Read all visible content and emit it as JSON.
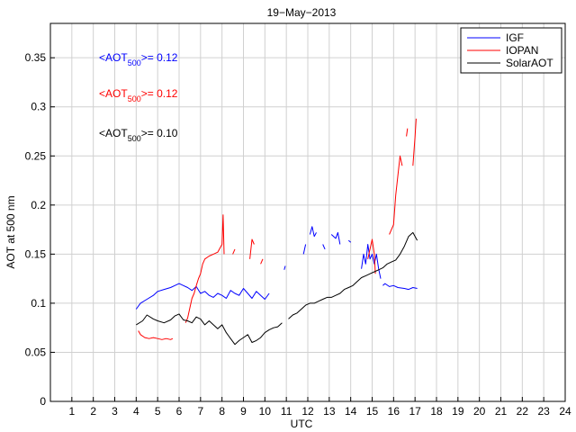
{
  "chart_data": {
    "type": "line",
    "title": "19−May−2013",
    "xlabel": "UTC",
    "ylabel": "AOT at 500 nm",
    "xlim": [
      0,
      24
    ],
    "ylim": [
      0,
      0.385
    ],
    "xticks": [
      1,
      2,
      3,
      4,
      5,
      6,
      7,
      8,
      9,
      10,
      11,
      12,
      13,
      14,
      15,
      16,
      17,
      18,
      19,
      20,
      21,
      22,
      23,
      24
    ],
    "xticklabels": [
      "1",
      "2",
      "3",
      "4",
      "5",
      "6",
      "7",
      "8",
      "9",
      "10",
      "11",
      "12",
      "13",
      "14",
      "15",
      "16",
      "17",
      "18",
      "19",
      "20",
      "21",
      "22",
      "23",
      "24"
    ],
    "yticks": [
      0,
      0.05,
      0.1,
      0.15,
      0.2,
      0.25,
      0.3,
      0.35
    ],
    "yticklabels": [
      "0",
      "0.05",
      "0.1",
      "0.15",
      "0.2",
      "0.25",
      "0.3",
      "0.35"
    ],
    "grid": true,
    "legend_position": "top-right",
    "annotations": [
      {
        "prefix": "<AOT",
        "sub": "500",
        "suffix": ">= 0.12",
        "color": "#0000ff"
      },
      {
        "prefix": "<AOT",
        "sub": "500",
        "suffix": ">= 0.12",
        "color": "#ff0000"
      },
      {
        "prefix": "<AOT",
        "sub": "500",
        "suffix": ">= 0.10",
        "color": "#000000"
      }
    ],
    "series": [
      {
        "name": "IGF",
        "color": "#0000ff",
        "segments": [
          [
            [
              4.0,
              0.094
            ],
            [
              4.2,
              0.1
            ],
            [
              4.5,
              0.104
            ],
            [
              4.8,
              0.108
            ],
            [
              5.0,
              0.112
            ],
            [
              5.3,
              0.114
            ],
            [
              5.6,
              0.116
            ],
            [
              5.8,
              0.118
            ],
            [
              6.0,
              0.12
            ],
            [
              6.2,
              0.118
            ],
            [
              6.4,
              0.116
            ],
            [
              6.6,
              0.113
            ],
            [
              6.8,
              0.117
            ],
            [
              7.0,
              0.11
            ],
            [
              7.2,
              0.112
            ],
            [
              7.4,
              0.108
            ],
            [
              7.6,
              0.106
            ],
            [
              7.8,
              0.11
            ],
            [
              8.0,
              0.108
            ],
            [
              8.2,
              0.105
            ],
            [
              8.4,
              0.113
            ],
            [
              8.6,
              0.11
            ],
            [
              8.8,
              0.108
            ],
            [
              9.0,
              0.115
            ],
            [
              9.2,
              0.11
            ],
            [
              9.4,
              0.105
            ],
            [
              9.6,
              0.112
            ],
            [
              9.8,
              0.108
            ],
            [
              10.0,
              0.104
            ],
            [
              10.2,
              0.11
            ]
          ],
          [
            [
              10.9,
              0.134
            ],
            [
              10.95,
              0.138
            ]
          ],
          [
            [
              11.8,
              0.15
            ],
            [
              11.9,
              0.16
            ]
          ],
          [
            [
              12.1,
              0.17
            ],
            [
              12.2,
              0.178
            ],
            [
              12.3,
              0.168
            ],
            [
              12.4,
              0.172
            ]
          ],
          [
            [
              12.7,
              0.16
            ],
            [
              12.8,
              0.155
            ]
          ],
          [
            [
              13.1,
              0.17
            ],
            [
              13.3,
              0.166
            ],
            [
              13.4,
              0.172
            ],
            [
              13.5,
              0.16
            ]
          ],
          [
            [
              13.9,
              0.164
            ],
            [
              14.0,
              0.162
            ]
          ],
          [
            [
              14.5,
              0.135
            ],
            [
              14.6,
              0.15
            ],
            [
              14.7,
              0.14
            ],
            [
              14.8,
              0.16
            ],
            [
              14.9,
              0.145
            ],
            [
              15.0,
              0.15
            ],
            [
              15.1,
              0.14
            ],
            [
              15.2,
              0.15
            ],
            [
              15.3,
              0.135
            ],
            [
              15.4,
              0.125
            ]
          ],
          [
            [
              15.5,
              0.118
            ],
            [
              15.6,
              0.12
            ],
            [
              15.8,
              0.117
            ],
            [
              16.0,
              0.118
            ],
            [
              16.2,
              0.116
            ],
            [
              16.5,
              0.115
            ],
            [
              16.7,
              0.114
            ],
            [
              16.9,
              0.116
            ],
            [
              17.1,
              0.115
            ]
          ]
        ]
      },
      {
        "name": "IOPAN",
        "color": "#ff0000",
        "segments": [
          [
            [
              4.1,
              0.072
            ],
            [
              4.2,
              0.068
            ],
            [
              4.4,
              0.065
            ],
            [
              4.6,
              0.064
            ],
            [
              4.8,
              0.065
            ],
            [
              5.0,
              0.064
            ],
            [
              5.2,
              0.063
            ],
            [
              5.4,
              0.064
            ],
            [
              5.6,
              0.063
            ],
            [
              5.7,
              0.064
            ]
          ],
          [
            [
              6.3,
              0.08
            ],
            [
              6.4,
              0.085
            ],
            [
              6.5,
              0.095
            ],
            [
              6.6,
              0.105
            ],
            [
              6.7,
              0.11
            ],
            [
              6.8,
              0.118
            ],
            [
              6.9,
              0.125
            ],
            [
              7.0,
              0.13
            ],
            [
              7.1,
              0.14
            ],
            [
              7.2,
              0.145
            ],
            [
              7.4,
              0.148
            ],
            [
              7.6,
              0.15
            ],
            [
              7.8,
              0.152
            ],
            [
              8.0,
              0.16
            ],
            [
              8.05,
              0.19
            ],
            [
              8.1,
              0.15
            ]
          ],
          [
            [
              8.5,
              0.15
            ],
            [
              8.6,
              0.155
            ]
          ],
          [
            [
              9.3,
              0.145
            ],
            [
              9.4,
              0.165
            ],
            [
              9.5,
              0.16
            ]
          ],
          [
            [
              9.8,
              0.14
            ],
            [
              9.9,
              0.145
            ]
          ],
          [
            [
              14.8,
              0.145
            ],
            [
              14.9,
              0.155
            ],
            [
              15.0,
              0.165
            ],
            [
              15.1,
              0.15
            ],
            [
              15.15,
              0.13
            ]
          ],
          [
            [
              15.8,
              0.17
            ],
            [
              15.9,
              0.175
            ],
            [
              16.0,
              0.18
            ],
            [
              16.1,
              0.21
            ],
            [
              16.2,
              0.23
            ],
            [
              16.3,
              0.25
            ],
            [
              16.4,
              0.24
            ]
          ],
          [
            [
              16.6,
              0.27
            ],
            [
              16.65,
              0.278
            ]
          ],
          [
            [
              16.9,
              0.24
            ],
            [
              17.0,
              0.27
            ],
            [
              17.05,
              0.288
            ]
          ]
        ]
      },
      {
        "name": "SolarAOT",
        "color": "#000000",
        "segments": [
          [
            [
              4.0,
              0.078
            ],
            [
              4.3,
              0.082
            ],
            [
              4.5,
              0.088
            ],
            [
              4.8,
              0.084
            ],
            [
              5.0,
              0.082
            ],
            [
              5.3,
              0.08
            ],
            [
              5.6,
              0.083
            ],
            [
              5.8,
              0.087
            ],
            [
              6.0,
              0.089
            ],
            [
              6.2,
              0.083
            ],
            [
              6.4,
              0.082
            ],
            [
              6.6,
              0.08
            ],
            [
              6.8,
              0.086
            ],
            [
              7.0,
              0.084
            ],
            [
              7.2,
              0.078
            ],
            [
              7.4,
              0.082
            ],
            [
              7.6,
              0.078
            ],
            [
              7.8,
              0.074
            ],
            [
              8.0,
              0.078
            ],
            [
              8.2,
              0.07
            ],
            [
              8.4,
              0.064
            ],
            [
              8.6,
              0.058
            ],
            [
              8.8,
              0.062
            ],
            [
              9.0,
              0.065
            ],
            [
              9.2,
              0.068
            ],
            [
              9.4,
              0.06
            ],
            [
              9.6,
              0.062
            ],
            [
              9.8,
              0.065
            ],
            [
              10.0,
              0.07
            ],
            [
              10.2,
              0.073
            ],
            [
              10.4,
              0.075
            ],
            [
              10.6,
              0.076
            ],
            [
              10.8,
              0.08
            ]
          ],
          [
            [
              11.1,
              0.084
            ],
            [
              11.3,
              0.088
            ],
            [
              11.5,
              0.09
            ],
            [
              11.7,
              0.094
            ],
            [
              11.9,
              0.098
            ],
            [
              12.1,
              0.1
            ],
            [
              12.3,
              0.1
            ],
            [
              12.5,
              0.102
            ],
            [
              12.7,
              0.104
            ],
            [
              12.9,
              0.106
            ],
            [
              13.1,
              0.106
            ],
            [
              13.3,
              0.108
            ],
            [
              13.5,
              0.11
            ],
            [
              13.7,
              0.114
            ],
            [
              13.9,
              0.116
            ],
            [
              14.1,
              0.118
            ],
            [
              14.3,
              0.122
            ],
            [
              14.5,
              0.126
            ],
            [
              14.7,
              0.128
            ],
            [
              14.9,
              0.13
            ],
            [
              15.1,
              0.132
            ],
            [
              15.3,
              0.134
            ],
            [
              15.5,
              0.136
            ],
            [
              15.7,
              0.14
            ],
            [
              15.9,
              0.142
            ],
            [
              16.1,
              0.144
            ],
            [
              16.3,
              0.15
            ],
            [
              16.5,
              0.158
            ],
            [
              16.7,
              0.168
            ],
            [
              16.9,
              0.172
            ],
            [
              17.0,
              0.168
            ],
            [
              17.1,
              0.164
            ]
          ]
        ]
      }
    ]
  }
}
